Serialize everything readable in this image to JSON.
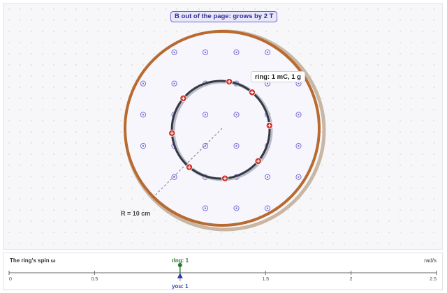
{
  "field": {
    "label": "B out of the page: grows by 2 T"
  },
  "ring": {
    "label": "ring: 1 mC, 1 g",
    "charges": 8
  },
  "radius": {
    "label": "R = 10 cm"
  },
  "colors": {
    "disk_rim": "#b86a30",
    "field_marker": "#6b63d6",
    "charge": "#c8322a",
    "ring": "#333844",
    "ring_marker": "#2a7a2e",
    "you_marker": "#2a40b0"
  },
  "scale": {
    "title": "The ring's spin ω",
    "unit": "rad/s",
    "min": 0,
    "max": 2.5,
    "ticks": [
      "0",
      "0.5",
      "1",
      "1.5",
      "2",
      "2.5"
    ],
    "ring_value": 1,
    "ring_label": "ring: 1",
    "you_value": 1,
    "you_label": "you: 1"
  }
}
